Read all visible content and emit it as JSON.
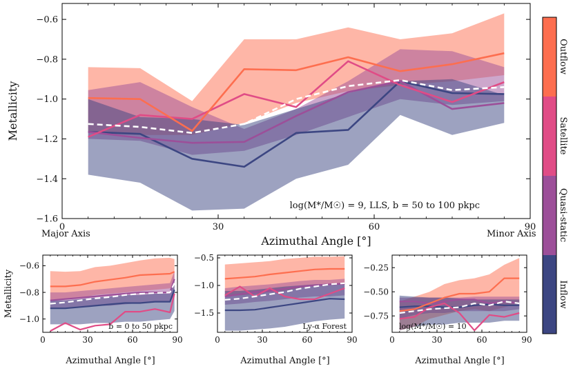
{
  "colors": {
    "outflow": "#fd6e4f",
    "satellite": "#e04c86",
    "quasi_static": "#9c4f99",
    "inflow": "#3c4682",
    "mean_line": "#ffffff"
  },
  "colorbar": {
    "labels": [
      "Outflow",
      "Satellite",
      "Quasi-static",
      "Inflow"
    ]
  },
  "chart_data": [
    {
      "type": "line",
      "id": "main",
      "xlabel": "Azimuthal Angle [°]",
      "ylabel": "Metallicity",
      "xlim": [
        0,
        90
      ],
      "ylim": [
        -1.6,
        -0.52
      ],
      "xticks": [
        0,
        30,
        60,
        90
      ],
      "xtick_labels": [
        "0",
        "30",
        "60",
        "90"
      ],
      "yticks": [
        -1.6,
        -1.4,
        -1.2,
        -1.0,
        -0.8,
        -0.6
      ],
      "ytick_labels": [
        "−1.6",
        "−1.4",
        "−1.2",
        "−1.0",
        "−0.8",
        "−0.6"
      ],
      "x_annotations": [
        "Major Axis",
        "Minor Axis"
      ],
      "annotation": "log(M*/M☉) = 9, LLS, b = 50 to 100 pkpc",
      "x": [
        5,
        15,
        25,
        35,
        45,
        55,
        65,
        75,
        85
      ],
      "bands": [
        {
          "name": "Outflow",
          "lower": [
            -1.17,
            -1.18,
            -1.18,
            -1.12,
            -1.02,
            -0.96,
            -0.93,
            -0.91,
            -0.88
          ],
          "upper": [
            -0.84,
            -0.845,
            -1.01,
            -0.7,
            -0.7,
            -0.64,
            -0.7,
            -0.67,
            -0.57
          ]
        },
        {
          "name": "Quasi-static",
          "lower": [
            -1.2,
            -1.21,
            -1.28,
            -1.26,
            -1.18,
            -1.09,
            -1.0,
            -1.03,
            -1.01
          ],
          "upper": [
            -0.955,
            -0.915,
            -1.04,
            -1.15,
            -1.05,
            -0.91,
            -0.75,
            -0.76,
            -0.84
          ]
        },
        {
          "name": "Inflow",
          "lower": [
            -1.38,
            -1.42,
            -1.56,
            -1.55,
            -1.4,
            -1.33,
            -1.08,
            -1.18,
            -1.12
          ],
          "upper": [
            -1.0,
            -1.09,
            -1.1,
            -1.13,
            -1.05,
            -0.97,
            -0.91,
            -0.9,
            -0.98
          ]
        }
      ],
      "series": [
        {
          "name": "Outflow",
          "values": [
            -0.995,
            -1.0,
            -1.16,
            -0.85,
            -0.855,
            -0.79,
            -0.86,
            -0.825,
            -0.77
          ]
        },
        {
          "name": "Satellite",
          "values": [
            -1.19,
            -1.08,
            -1.1,
            -0.975,
            -1.04,
            -0.81,
            -0.93,
            -1.015,
            -0.915
          ]
        },
        {
          "name": "Quasi-static",
          "values": [
            -1.165,
            -1.195,
            -1.22,
            -1.215,
            -1.085,
            -0.965,
            -0.91,
            -1.05,
            -1.02
          ]
        },
        {
          "name": "Inflow",
          "values": [
            -1.165,
            -1.175,
            -1.3,
            -1.34,
            -1.17,
            -1.155,
            -0.91,
            -0.97,
            -0.975
          ]
        }
      ],
      "mean": [
        -1.125,
        -1.14,
        -1.17,
        -1.125,
        -1.0,
        -0.935,
        -0.905,
        -0.955,
        -0.94
      ]
    },
    {
      "type": "line",
      "id": "sub1",
      "xlabel": "Azimuthal Angle [°]",
      "ylabel": "Metallicity",
      "xlim": [
        0,
        90
      ],
      "ylim": [
        -1.1,
        -0.52
      ],
      "xticks": [
        0,
        30,
        60,
        90
      ],
      "xtick_labels": [
        "0",
        "30",
        "60",
        "90"
      ],
      "yticks": [
        -1.0,
        -0.8,
        -0.6
      ],
      "ytick_labels": [
        "−1.0",
        "−0.8",
        "−0.6"
      ],
      "annotation": "b = 0 to 50 pkpc",
      "x": [
        5,
        15,
        25,
        35,
        45,
        55,
        65,
        75,
        85,
        88
      ],
      "bands": [
        {
          "name": "Outflow",
          "lower": [
            -0.86,
            -0.85,
            -0.84,
            -0.82,
            -0.81,
            -0.8,
            -0.79,
            -0.78,
            -0.77,
            -0.74
          ],
          "upper": [
            -0.64,
            -0.645,
            -0.64,
            -0.61,
            -0.6,
            -0.58,
            -0.56,
            -0.545,
            -0.54,
            -0.55
          ]
        },
        {
          "name": "Quasi-static",
          "lower": [
            -0.92,
            -0.92,
            -0.91,
            -0.9,
            -0.9,
            -0.89,
            -0.88,
            -0.87,
            -0.87,
            -0.82
          ],
          "upper": [
            -0.8,
            -0.8,
            -0.79,
            -0.78,
            -0.77,
            -0.76,
            -0.75,
            -0.74,
            -0.73,
            -0.64
          ]
        },
        {
          "name": "Inflow",
          "lower": [
            -1.04,
            -1.04,
            -1.04,
            -1.03,
            -1.03,
            -1.02,
            -1.02,
            -1.01,
            -1.0,
            -0.94
          ],
          "upper": [
            -0.86,
            -0.86,
            -0.85,
            -0.84,
            -0.83,
            -0.82,
            -0.82,
            -0.81,
            -0.81,
            -0.72
          ]
        }
      ],
      "series": [
        {
          "name": "Outflow",
          "values": [
            -0.755,
            -0.755,
            -0.745,
            -0.72,
            -0.705,
            -0.69,
            -0.67,
            -0.665,
            -0.66,
            -0.645
          ]
        },
        {
          "name": "Satellite",
          "values": [
            -1.09,
            -1.03,
            -1.08,
            -1.05,
            -1.04,
            -0.945,
            -0.945,
            -0.925,
            -0.95,
            -0.81
          ]
        },
        {
          "name": "Quasi-static",
          "values": [
            -0.86,
            -0.85,
            -0.84,
            -0.83,
            -0.82,
            -0.81,
            -0.8,
            -0.8,
            -0.8,
            -0.7
          ]
        },
        {
          "name": "Inflow",
          "values": [
            -0.92,
            -0.92,
            -0.91,
            -0.9,
            -0.89,
            -0.88,
            -0.88,
            -0.87,
            -0.87,
            -0.78
          ]
        }
      ],
      "mean": [
        -0.885,
        -0.875,
        -0.86,
        -0.845,
        -0.835,
        -0.82,
        -0.81,
        -0.805,
        -0.8,
        -0.73
      ]
    },
    {
      "type": "line",
      "id": "sub2",
      "xlabel": "Azimuthal Angle [°]",
      "ylabel": "",
      "xlim": [
        0,
        90
      ],
      "ylim": [
        -1.85,
        -0.45
      ],
      "xticks": [
        0,
        30,
        60,
        90
      ],
      "xtick_labels": [
        "0",
        "30",
        "60",
        "90"
      ],
      "yticks": [
        -1.5,
        -1.0,
        -0.5
      ],
      "ytick_labels": [
        "−1.5",
        "−1.0",
        "−0.5"
      ],
      "annotation": "Ly-α Forest",
      "x": [
        5,
        15,
        25,
        35,
        45,
        55,
        65,
        75,
        85
      ],
      "bands": [
        {
          "name": "Outflow",
          "lower": [
            -1.2,
            -1.18,
            -1.16,
            -1.12,
            -1.1,
            -1.05,
            -1.0,
            -0.98,
            -0.95
          ],
          "upper": [
            -0.62,
            -0.6,
            -0.58,
            -0.56,
            -0.52,
            -0.5,
            -0.48,
            -0.48,
            -0.47
          ]
        },
        {
          "name": "Quasi-static",
          "lower": [
            -1.35,
            -1.33,
            -1.3,
            -1.28,
            -1.25,
            -1.22,
            -1.2,
            -1.2,
            -1.18
          ],
          "upper": [
            -1.05,
            -1.02,
            -1.0,
            -0.98,
            -0.95,
            -0.92,
            -0.9,
            -0.9,
            -0.88
          ]
        },
        {
          "name": "Inflow",
          "lower": [
            -1.82,
            -1.82,
            -1.8,
            -1.78,
            -1.75,
            -1.7,
            -1.65,
            -1.62,
            -1.6
          ],
          "upper": [
            -1.1,
            -1.1,
            -1.08,
            -1.05,
            -1.02,
            -1.0,
            -0.98,
            -0.97,
            -0.95
          ]
        }
      ],
      "series": [
        {
          "name": "Outflow",
          "values": [
            -0.88,
            -0.86,
            -0.84,
            -0.8,
            -0.77,
            -0.74,
            -0.71,
            -0.7,
            -0.7
          ]
        },
        {
          "name": "Satellite",
          "values": [
            -1.18,
            -1.02,
            -1.2,
            -1.05,
            -1.2,
            -1.25,
            -1.25,
            -1.15,
            -1.05
          ]
        },
        {
          "name": "Quasi-static",
          "values": [
            -1.2,
            -1.16,
            -1.12,
            -1.1,
            -1.06,
            -1.02,
            -1.0,
            -0.98,
            -0.97
          ]
        },
        {
          "name": "Inflow",
          "values": [
            -1.45,
            -1.45,
            -1.44,
            -1.4,
            -1.36,
            -1.32,
            -1.28,
            -1.24,
            -1.25
          ]
        }
      ],
      "mean": [
        -1.26,
        -1.24,
        -1.2,
        -1.16,
        -1.12,
        -1.06,
        -1.02,
        -0.98,
        -0.96
      ]
    },
    {
      "type": "line",
      "id": "sub3",
      "xlabel": "Azimuthal Angle [°]",
      "ylabel": "",
      "xlim": [
        0,
        90
      ],
      "ylim": [
        -0.92,
        -0.12
      ],
      "xticks": [
        0,
        30,
        60,
        90
      ],
      "xtick_labels": [
        "0",
        "30",
        "60",
        "90"
      ],
      "yticks": [
        -0.75,
        -0.5,
        -0.25
      ],
      "ytick_labels": [
        "−0.75",
        "−0.50",
        "−0.25"
      ],
      "annotation": "log(M*/M☉) = 10",
      "x": [
        5,
        15,
        25,
        35,
        45,
        55,
        65,
        75,
        85
      ],
      "bands": [
        {
          "name": "Outflow",
          "lower": [
            -0.9,
            -0.86,
            -0.78,
            -0.74,
            -0.7,
            -0.68,
            -0.7,
            -0.66,
            -0.62
          ],
          "upper": [
            -0.6,
            -0.55,
            -0.5,
            -0.42,
            -0.38,
            -0.36,
            -0.32,
            -0.22,
            -0.15
          ]
        },
        {
          "name": "Quasi-static",
          "lower": [
            -0.78,
            -0.74,
            -0.72,
            -0.72,
            -0.7,
            -0.7,
            -0.7,
            -0.7,
            -0.68
          ],
          "upper": [
            -0.56,
            -0.56,
            -0.56,
            -0.56,
            -0.56,
            -0.55,
            -0.55,
            -0.55,
            -0.55
          ]
        },
        {
          "name": "Inflow",
          "lower": [
            -0.9,
            -0.86,
            -0.84,
            -0.84,
            -0.82,
            -0.82,
            -0.82,
            -0.8,
            -0.8
          ],
          "upper": [
            -0.54,
            -0.55,
            -0.56,
            -0.56,
            -0.57,
            -0.58,
            -0.58,
            -0.58,
            -0.58
          ]
        }
      ],
      "series": [
        {
          "name": "Outflow",
          "values": [
            -0.7,
            -0.68,
            -0.62,
            -0.56,
            -0.52,
            -0.52,
            -0.5,
            -0.36,
            -0.36
          ]
        },
        {
          "name": "Satellite",
          "values": [
            -0.78,
            -0.76,
            -0.66,
            -0.62,
            -0.72,
            -0.9,
            -0.74,
            -0.76,
            -0.72
          ]
        },
        {
          "name": "Quasi-static",
          "values": [
            -0.6,
            -0.6,
            -0.62,
            -0.6,
            -0.58,
            -0.58,
            -0.62,
            -0.6,
            -0.62
          ]
        },
        {
          "name": "Inflow",
          "values": [
            -0.66,
            -0.65,
            -0.65,
            -0.66,
            -0.66,
            -0.64,
            -0.63,
            -0.64,
            -0.64
          ]
        }
      ],
      "mean": [
        -0.72,
        -0.7,
        -0.68,
        -0.67,
        -0.66,
        -0.62,
        -0.64,
        -0.6,
        -0.62
      ]
    }
  ]
}
